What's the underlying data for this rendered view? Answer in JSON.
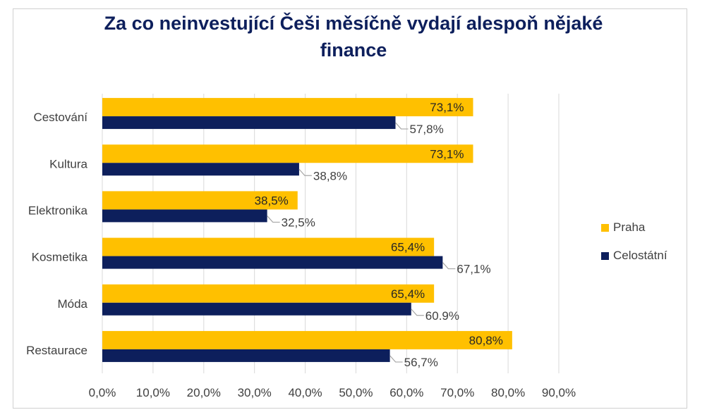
{
  "chart_data": {
    "type": "bar",
    "orientation": "horizontal",
    "title": "Za co neinvestující Češi měsíčně vydají alespoň nějaké finance",
    "title_lines": [
      "Za co neinvestující Češi měsíčně vydají alespoň nějaké",
      "finance"
    ],
    "categories": [
      "Cestování",
      "Kultura",
      "Elektronika",
      "Kosmetika",
      "Móda",
      "Restaurace"
    ],
    "series": [
      {
        "name": "Praha",
        "color": "#ffc000",
        "values": [
          73.1,
          73.1,
          38.5,
          65.4,
          65.4,
          80.8
        ],
        "labels": [
          "73,1%",
          "73,1%",
          "38,5%",
          "65,4%",
          "65,4%",
          "80,8%"
        ]
      },
      {
        "name": "Celostátní",
        "color": "#0d1f5c",
        "values": [
          57.8,
          38.8,
          32.5,
          67.1,
          60.9,
          56.7
        ],
        "labels": [
          "57,8%",
          "38,8%",
          "32,5%",
          "67,1%",
          "60.9%",
          "56,7%"
        ]
      }
    ],
    "xlim": [
      0,
      90
    ],
    "xticks": [
      "0,0%",
      "10,0%",
      "20,0%",
      "30,0%",
      "40,0%",
      "50,0%",
      "60,0%",
      "70,0%",
      "80,0%",
      "90,0%"
    ],
    "grid": "vertical",
    "legend": "right"
  }
}
